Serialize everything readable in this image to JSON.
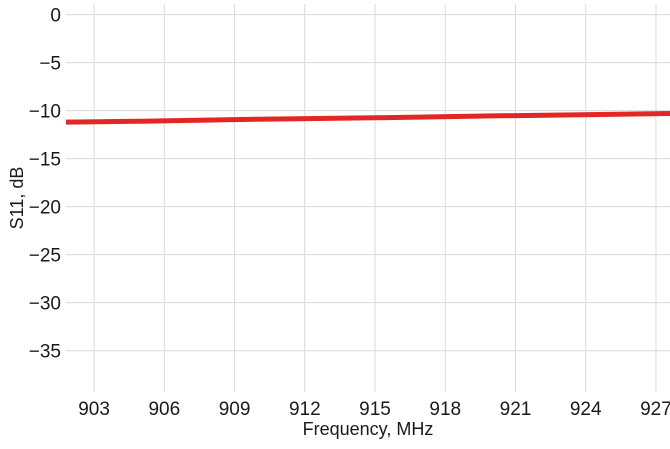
{
  "chart_data": {
    "type": "line",
    "title": "",
    "xlabel": "Frequency, MHz",
    "ylabel": "S11, dB",
    "xlim": [
      901.8,
      927.6
    ],
    "ylim": [
      -39.3,
      1.1
    ],
    "x_ticks": [
      903,
      906,
      909,
      912,
      915,
      918,
      921,
      924,
      927
    ],
    "x_tick_labels": [
      "903",
      "906",
      "909",
      "912",
      "915",
      "918",
      "921",
      "924",
      "927"
    ],
    "y_ticks": [
      0,
      -5,
      -10,
      -15,
      -20,
      -25,
      -30,
      -35
    ],
    "y_tick_labels": [
      "0",
      "−5",
      "−10",
      "−15",
      "−20",
      "−25",
      "−30",
      "−35"
    ],
    "grid": true,
    "series": [
      {
        "color": "#e32626",
        "x": [
          901.8,
          905,
          910,
          915,
          920,
          925,
          927.6
        ],
        "y": [
          -11.2,
          -11.1,
          -10.9,
          -10.75,
          -10.55,
          -10.4,
          -10.3
        ]
      }
    ]
  }
}
